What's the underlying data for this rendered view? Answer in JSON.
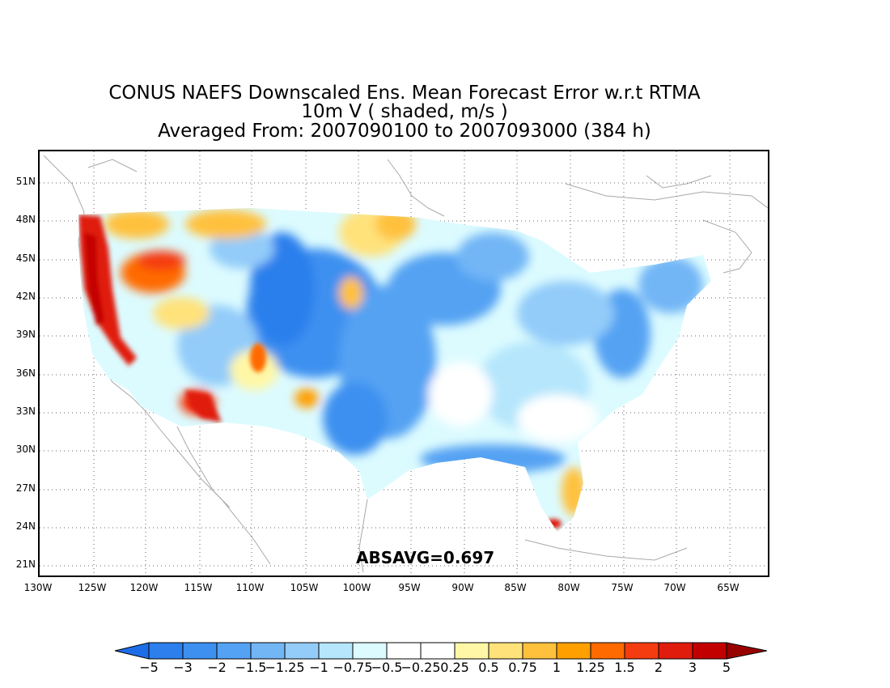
{
  "title": {
    "line1": "CONUS NAEFS Downscaled Ens. Mean Forecast Error w.r.t RTMA",
    "line2": "10m V ( shaded, m/s )",
    "line3": "Averaged From: 2007090100 to 2007093000 (384 h)"
  },
  "map": {
    "lat_ticks": [
      "51N",
      "48N",
      "45N",
      "42N",
      "39N",
      "36N",
      "33N",
      "30N",
      "27N",
      "24N",
      "21N"
    ],
    "lon_ticks": [
      "130W",
      "125W",
      "120W",
      "115W",
      "110W",
      "105W",
      "100W",
      "95W",
      "90W",
      "85W",
      "80W",
      "75W",
      "70W",
      "65W"
    ],
    "absavg_text": "ABSAVG=0.697",
    "grid": "dotted",
    "coastline_color": "#a0a0a0"
  },
  "colorbar": {
    "labels": [
      "−5",
      "−3",
      "−2",
      "−1.5",
      "−1.25",
      "−1",
      "−0.75",
      "−0.5",
      "−0.25",
      "0.25",
      "0.5",
      "0.75",
      "1",
      "1.25",
      "1.5",
      "2",
      "3",
      "5"
    ],
    "colors": [
      "#1e6de8",
      "#2c7fec",
      "#3d90f0",
      "#54a2f3",
      "#72b6f6",
      "#93ccf9",
      "#b5e6fc",
      "#dcfbff",
      "#ffffff",
      "#fff7a6",
      "#ffe27a",
      "#ffc13c",
      "#ff9f00",
      "#ff6a00",
      "#f53b10",
      "#e01c0c",
      "#c30000",
      "#990000"
    ]
  }
}
